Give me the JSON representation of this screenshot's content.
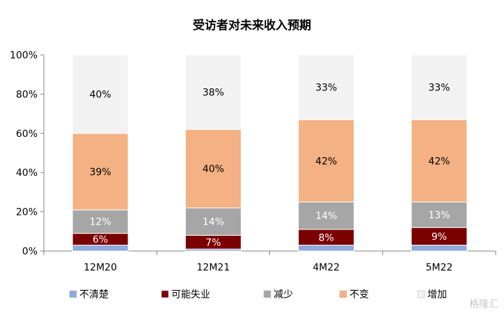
{
  "chart_data": {
    "type": "bar",
    "stacked": true,
    "title": "受访者对未来收入预期",
    "categories": [
      "12M20",
      "12M21",
      "4M22",
      "5M22"
    ],
    "ylim": [
      0,
      100
    ],
    "yticks": [
      "0%",
      "20%",
      "40%",
      "60%",
      "80%",
      "100%"
    ],
    "grid": false,
    "legend_position": "bottom",
    "series": [
      {
        "name": "不清楚",
        "color": "#8ea9db",
        "values": [
          3,
          1,
          3,
          3
        ],
        "labels": [
          "",
          "",
          "",
          ""
        ],
        "label_color": "#ffffff"
      },
      {
        "name": "可能失业",
        "color": "#7b0000",
        "values": [
          6,
          7,
          8,
          9
        ],
        "labels": [
          "6%",
          "7%",
          "8%",
          "9%"
        ],
        "label_color": "#ffffff"
      },
      {
        "name": "减少",
        "color": "#a6a6a6",
        "values": [
          12,
          14,
          14,
          13
        ],
        "labels": [
          "12%",
          "14%",
          "14%",
          "13%"
        ],
        "label_color": "#ffffff"
      },
      {
        "name": "不变",
        "color": "#f4b183",
        "values": [
          39,
          40,
          42,
          42
        ],
        "labels": [
          "39%",
          "40%",
          "42%",
          "42%"
        ],
        "label_color": "#000000"
      },
      {
        "name": "增加",
        "color": "#f2f2f2",
        "values": [
          40,
          38,
          33,
          33
        ],
        "labels": [
          "40%",
          "38%",
          "33%",
          "33%"
        ],
        "label_color": "#000000"
      }
    ]
  },
  "watermark": "格隆汇"
}
